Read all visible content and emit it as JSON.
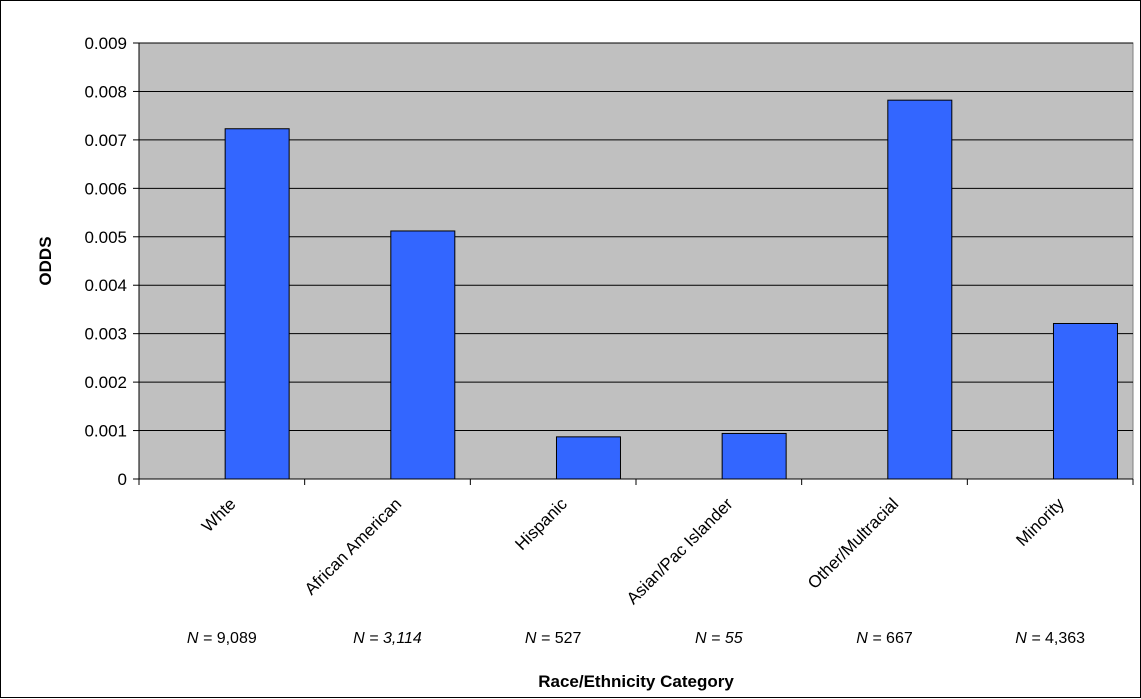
{
  "chart_data": {
    "type": "bar",
    "title": "",
    "xlabel": "Race/Ethnicity Category",
    "ylabel": "ODDS",
    "ylim": [
      0,
      0.009
    ],
    "yticks": [
      "0",
      "0.001",
      "0.002",
      "0.003",
      "0.004",
      "0.005",
      "0.006",
      "0.007",
      "0.008",
      "0.009"
    ],
    "categories": [
      "Whte",
      "African American",
      "Hispanic",
      "Asian/Pac Islander",
      "Other/Multracial",
      "Minority"
    ],
    "values": [
      0.00723,
      0.00512,
      0.00087,
      0.00094,
      0.00782,
      0.00321
    ],
    "grid": true,
    "legend": "none",
    "annotations": [
      {
        "n_label": "N =",
        "n_value": "9,089",
        "n_value_italic": false
      },
      {
        "n_label": "N =",
        "n_value": "3,114",
        "n_value_italic": true
      },
      {
        "n_label": "N =",
        "n_value": "527",
        "n_value_italic": false
      },
      {
        "n_label": "N =",
        "n_value": "55",
        "n_value_italic": true
      },
      {
        "n_label": "N =",
        "n_value": "667",
        "n_value_italic": false
      },
      {
        "n_label": "N =",
        "n_value": "4,363",
        "n_value_italic": false
      }
    ]
  },
  "colors": {
    "plot_background": "#c0c0c0",
    "bar_fill": "#3366ff",
    "bar_stroke": "#000000",
    "gridline": "#000000"
  }
}
